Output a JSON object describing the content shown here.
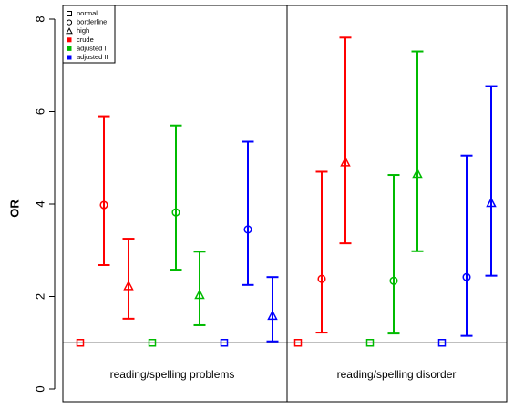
{
  "chart_data": {
    "type": "scatter",
    "title": "",
    "xlabel": "",
    "ylabel": "OR",
    "ylim": [
      -0.2,
      8.2
    ],
    "yticks": [
      0,
      2,
      4,
      6,
      8
    ],
    "reference_line": 1,
    "grid": false,
    "legend_position": "top-left",
    "panels": [
      "reading/spelling problems",
      "reading/spelling disorder"
    ],
    "levels": [
      {
        "name": "normal",
        "marker": "square"
      },
      {
        "name": "borderline",
        "marker": "circle"
      },
      {
        "name": "high",
        "marker": "triangle"
      }
    ],
    "series": [
      {
        "name": "crude",
        "color": "#ff0000",
        "points": [
          {
            "panel": "reading/spelling problems",
            "level": "normal",
            "or": 1.0
          },
          {
            "panel": "reading/spelling problems",
            "level": "borderline",
            "or": 3.98,
            "lower": 2.68,
            "upper": 5.9
          },
          {
            "panel": "reading/spelling problems",
            "level": "high",
            "or": 2.22,
            "lower": 1.52,
            "upper": 3.25
          },
          {
            "panel": "reading/spelling disorder",
            "level": "normal",
            "or": 1.0
          },
          {
            "panel": "reading/spelling disorder",
            "level": "borderline",
            "or": 2.38,
            "lower": 1.22,
            "upper": 4.7
          },
          {
            "panel": "reading/spelling disorder",
            "level": "high",
            "or": 4.9,
            "lower": 3.15,
            "upper": 7.6
          }
        ]
      },
      {
        "name": "adjusted I",
        "color": "#00bb00",
        "points": [
          {
            "panel": "reading/spelling problems",
            "level": "normal",
            "or": 1.0
          },
          {
            "panel": "reading/spelling problems",
            "level": "borderline",
            "or": 3.82,
            "lower": 2.58,
            "upper": 5.7
          },
          {
            "panel": "reading/spelling problems",
            "level": "high",
            "or": 2.03,
            "lower": 1.38,
            "upper": 2.97
          },
          {
            "panel": "reading/spelling disorder",
            "level": "normal",
            "or": 1.0
          },
          {
            "panel": "reading/spelling disorder",
            "level": "borderline",
            "or": 2.34,
            "lower": 1.2,
            "upper": 4.63
          },
          {
            "panel": "reading/spelling disorder",
            "level": "high",
            "or": 4.65,
            "lower": 2.98,
            "upper": 7.3
          }
        ]
      },
      {
        "name": "adjusted II",
        "color": "#0000ff",
        "points": [
          {
            "panel": "reading/spelling problems",
            "level": "normal",
            "or": 1.0
          },
          {
            "panel": "reading/spelling problems",
            "level": "borderline",
            "or": 3.45,
            "lower": 2.25,
            "upper": 5.35
          },
          {
            "panel": "reading/spelling problems",
            "level": "high",
            "or": 1.58,
            "lower": 1.03,
            "upper": 2.42
          },
          {
            "panel": "reading/spelling disorder",
            "level": "normal",
            "or": 1.0
          },
          {
            "panel": "reading/spelling disorder",
            "level": "borderline",
            "or": 2.42,
            "lower": 1.15,
            "upper": 5.05
          },
          {
            "panel": "reading/spelling disorder",
            "level": "high",
            "or": 4.02,
            "lower": 2.45,
            "upper": 6.55
          }
        ]
      }
    ]
  }
}
